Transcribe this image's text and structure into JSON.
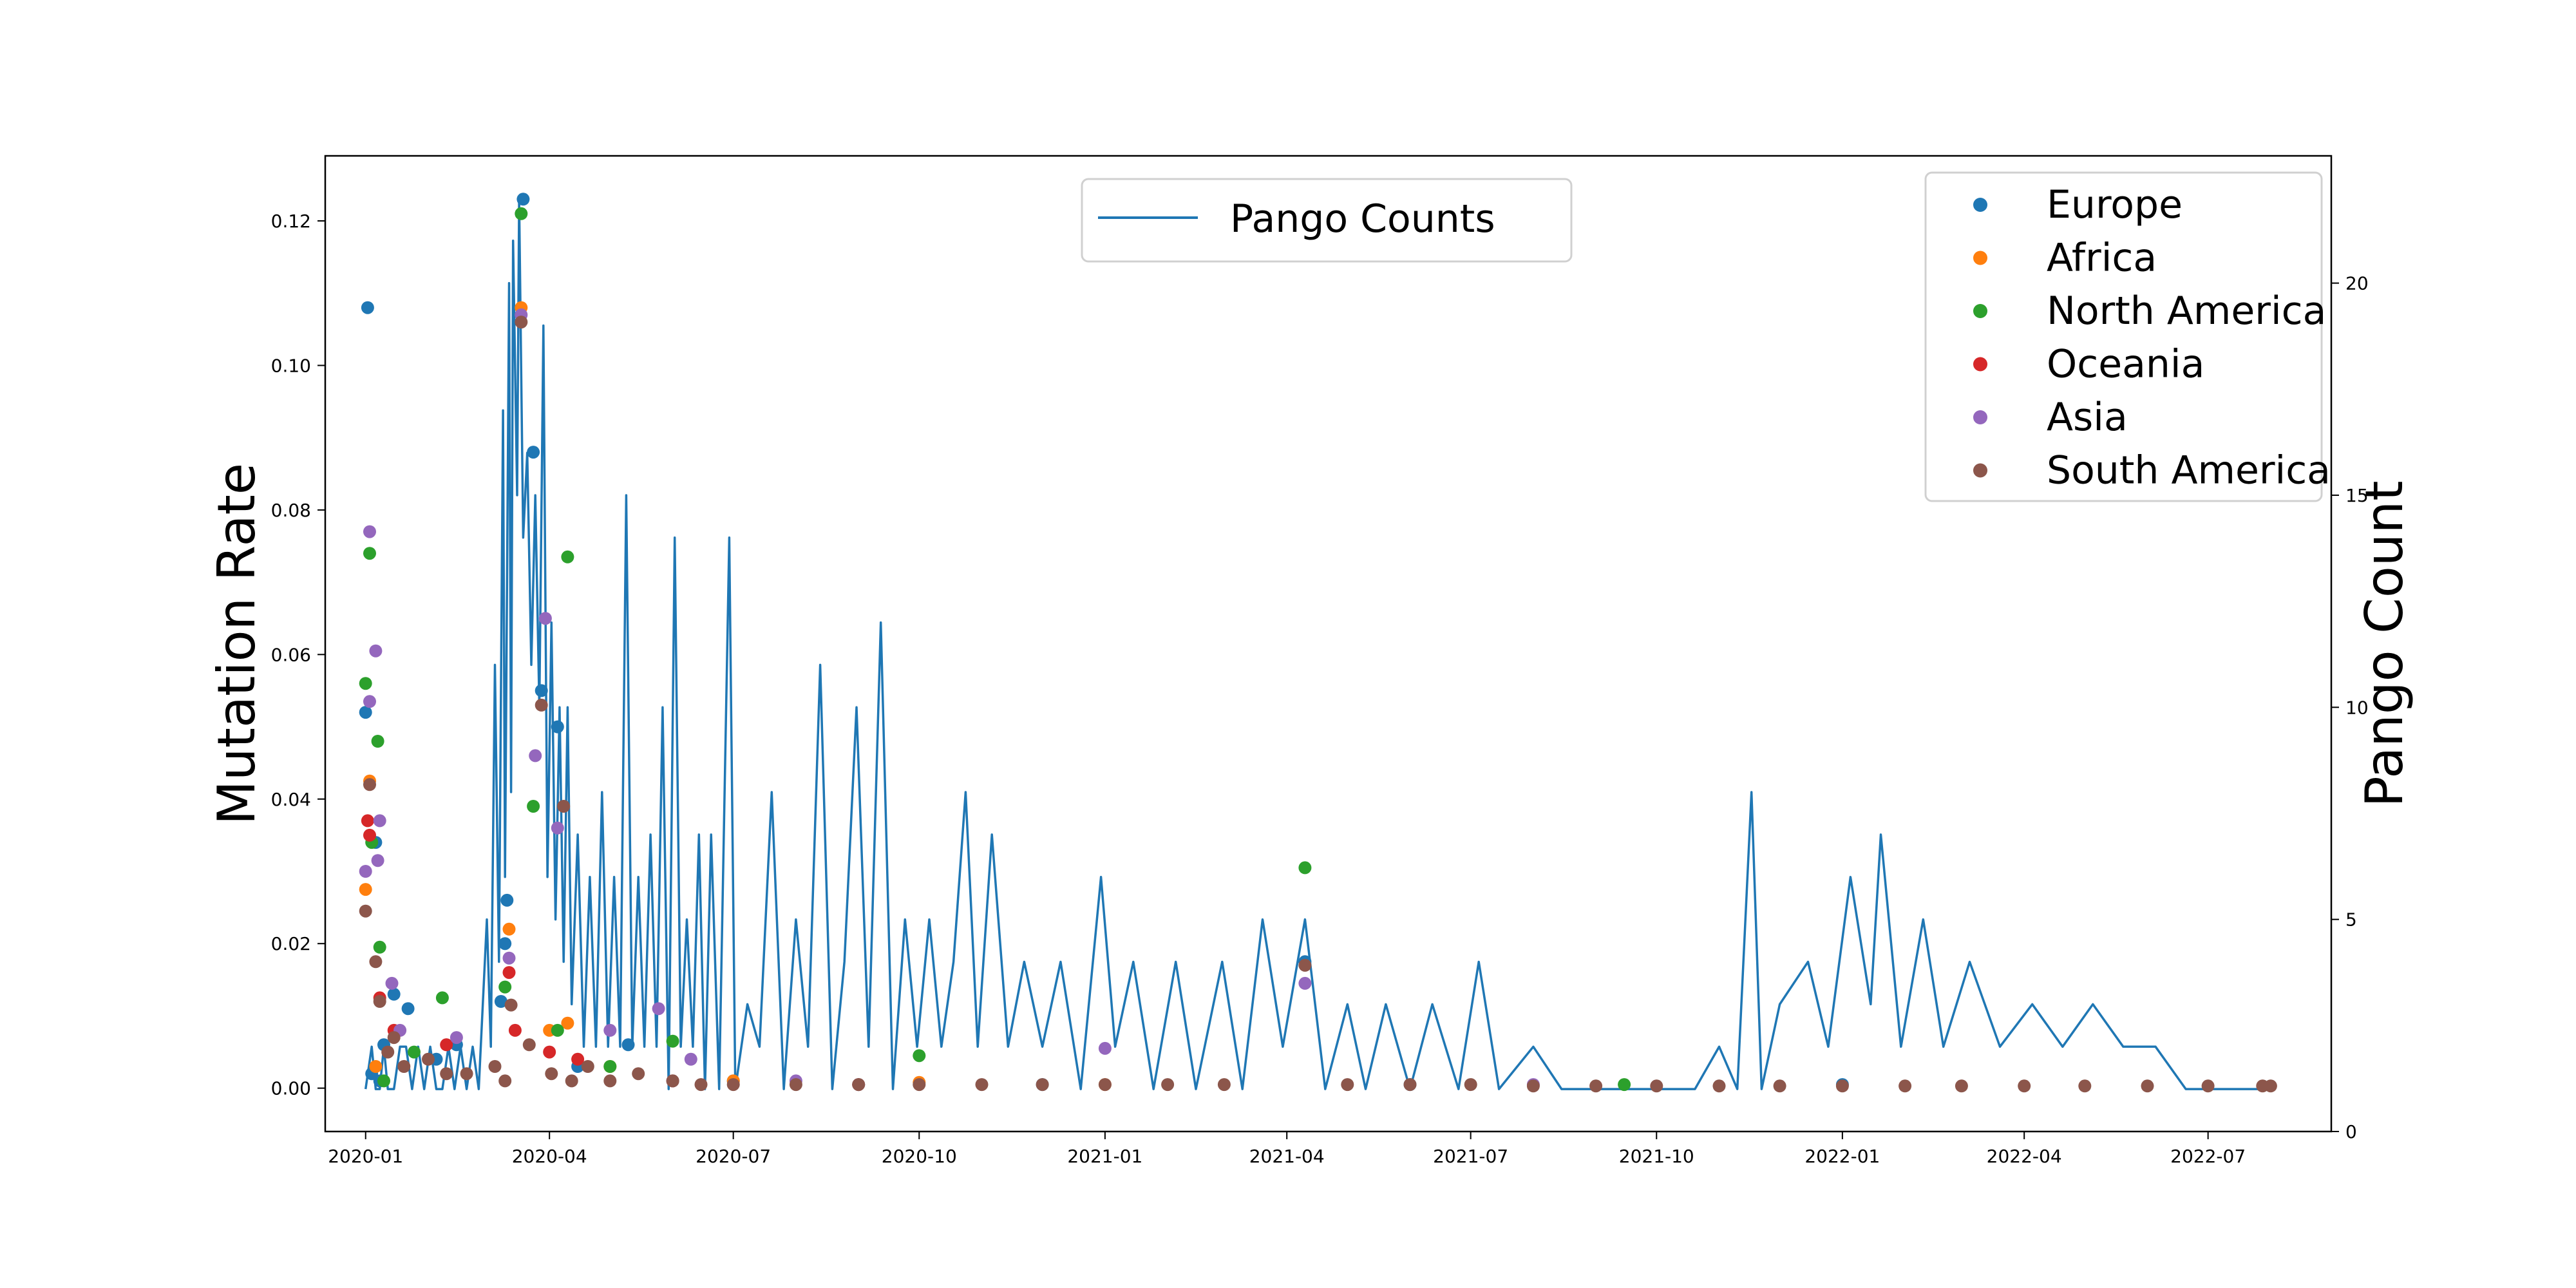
{
  "chart_data": {
    "type": "scatter",
    "title": "",
    "xlabel": "",
    "ylabel": "Mutation Rate",
    "y2label": "Pango Count",
    "x_ticks": [
      "2020-01",
      "2020-04",
      "2020-07",
      "2020-10",
      "2021-01",
      "2021-04",
      "2021-07",
      "2021-10",
      "2022-01",
      "2022-04",
      "2022-07"
    ],
    "xlim": [
      "2019-12-12",
      "2022-08-31"
    ],
    "ylim": [
      -0.006,
      0.129
    ],
    "y_ticks": [
      "0.00",
      "0.02",
      "0.04",
      "0.06",
      "0.08",
      "0.10",
      "0.12"
    ],
    "y2lim": [
      0,
      23
    ],
    "y2_ticks": [
      "0",
      "5",
      "10",
      "15",
      "20"
    ],
    "grid": false,
    "legend_line": {
      "placement": "top-center",
      "entries": [
        "Pango Counts"
      ]
    },
    "legend_scatter": {
      "placement": "top-right"
    },
    "line_series": {
      "name": "Pango Counts",
      "color": "#1f77b4",
      "points": [
        [
          "2020-01-01",
          1
        ],
        [
          "2020-01-04",
          2
        ],
        [
          "2020-01-06",
          1
        ],
        [
          "2020-01-08",
          1
        ],
        [
          "2020-01-10",
          2
        ],
        [
          "2020-01-12",
          1
        ],
        [
          "2020-01-15",
          1
        ],
        [
          "2020-01-18",
          2
        ],
        [
          "2020-01-21",
          2
        ],
        [
          "2020-01-24",
          1
        ],
        [
          "2020-01-27",
          2
        ],
        [
          "2020-01-30",
          1
        ],
        [
          "2020-02-02",
          2
        ],
        [
          "2020-02-05",
          1
        ],
        [
          "2020-02-08",
          1
        ],
        [
          "2020-02-11",
          2
        ],
        [
          "2020-02-14",
          1
        ],
        [
          "2020-02-17",
          2
        ],
        [
          "2020-02-20",
          1
        ],
        [
          "2020-02-23",
          2
        ],
        [
          "2020-02-26",
          1
        ],
        [
          "2020-03-01",
          5
        ],
        [
          "2020-03-03",
          2
        ],
        [
          "2020-03-05",
          11
        ],
        [
          "2020-03-07",
          4
        ],
        [
          "2020-03-09",
          17
        ],
        [
          "2020-03-10",
          6
        ],
        [
          "2020-03-12",
          20
        ],
        [
          "2020-03-13",
          8
        ],
        [
          "2020-03-14",
          21
        ],
        [
          "2020-03-16",
          15
        ],
        [
          "2020-03-17",
          22
        ],
        [
          "2020-03-19",
          14
        ],
        [
          "2020-03-21",
          16
        ],
        [
          "2020-03-23",
          11
        ],
        [
          "2020-03-25",
          15
        ],
        [
          "2020-03-27",
          10
        ],
        [
          "2020-03-29",
          19
        ],
        [
          "2020-03-31",
          6
        ],
        [
          "2020-04-02",
          12
        ],
        [
          "2020-04-04",
          5
        ],
        [
          "2020-04-06",
          10
        ],
        [
          "2020-04-08",
          4
        ],
        [
          "2020-04-10",
          10
        ],
        [
          "2020-04-12",
          3
        ],
        [
          "2020-04-15",
          7
        ],
        [
          "2020-04-18",
          2
        ],
        [
          "2020-04-21",
          6
        ],
        [
          "2020-04-24",
          2
        ],
        [
          "2020-04-27",
          8
        ],
        [
          "2020-04-30",
          2
        ],
        [
          "2020-05-03",
          6
        ],
        [
          "2020-05-06",
          2
        ],
        [
          "2020-05-09",
          15
        ],
        [
          "2020-05-12",
          2
        ],
        [
          "2020-05-15",
          6
        ],
        [
          "2020-05-18",
          2
        ],
        [
          "2020-05-21",
          7
        ],
        [
          "2020-05-24",
          2
        ],
        [
          "2020-05-27",
          10
        ],
        [
          "2020-05-30",
          1
        ],
        [
          "2020-06-02",
          14
        ],
        [
          "2020-06-05",
          2
        ],
        [
          "2020-06-08",
          5
        ],
        [
          "2020-06-11",
          2
        ],
        [
          "2020-06-14",
          7
        ],
        [
          "2020-06-17",
          1
        ],
        [
          "2020-06-20",
          7
        ],
        [
          "2020-06-24",
          1
        ],
        [
          "2020-06-29",
          14
        ],
        [
          "2020-07-02",
          1
        ],
        [
          "2020-07-08",
          3
        ],
        [
          "2020-07-14",
          2
        ],
        [
          "2020-07-20",
          8
        ],
        [
          "2020-07-26",
          1
        ],
        [
          "2020-08-01",
          5
        ],
        [
          "2020-08-07",
          2
        ],
        [
          "2020-08-13",
          11
        ],
        [
          "2020-08-19",
          1
        ],
        [
          "2020-08-25",
          4
        ],
        [
          "2020-08-31",
          10
        ],
        [
          "2020-09-06",
          2
        ],
        [
          "2020-09-12",
          12
        ],
        [
          "2020-09-18",
          1
        ],
        [
          "2020-09-24",
          5
        ],
        [
          "2020-09-30",
          2
        ],
        [
          "2020-10-06",
          5
        ],
        [
          "2020-10-12",
          2
        ],
        [
          "2020-10-18",
          4
        ],
        [
          "2020-10-24",
          8
        ],
        [
          "2020-10-30",
          2
        ],
        [
          "2020-11-06",
          7
        ],
        [
          "2020-11-14",
          2
        ],
        [
          "2020-11-22",
          4
        ],
        [
          "2020-12-01",
          2
        ],
        [
          "2020-12-10",
          4
        ],
        [
          "2020-12-20",
          1
        ],
        [
          "2020-12-30",
          6
        ],
        [
          "2021-01-06",
          2
        ],
        [
          "2021-01-15",
          4
        ],
        [
          "2021-01-25",
          1
        ],
        [
          "2021-02-05",
          4
        ],
        [
          "2021-02-15",
          1
        ],
        [
          "2021-02-28",
          4
        ],
        [
          "2021-03-10",
          1
        ],
        [
          "2021-03-20",
          5
        ],
        [
          "2021-03-30",
          2
        ],
        [
          "2021-04-10",
          5
        ],
        [
          "2021-04-20",
          1
        ],
        [
          "2021-05-01",
          3
        ],
        [
          "2021-05-10",
          1
        ],
        [
          "2021-05-20",
          3
        ],
        [
          "2021-06-01",
          1
        ],
        [
          "2021-06-12",
          3
        ],
        [
          "2021-06-25",
          1
        ],
        [
          "2021-07-05",
          4
        ],
        [
          "2021-07-15",
          1
        ],
        [
          "2021-08-01",
          2
        ],
        [
          "2021-08-15",
          1
        ],
        [
          "2021-09-01",
          1
        ],
        [
          "2021-10-01",
          1
        ],
        [
          "2021-10-20",
          1
        ],
        [
          "2021-11-01",
          2
        ],
        [
          "2021-11-10",
          1
        ],
        [
          "2021-11-17",
          8
        ],
        [
          "2021-11-22",
          1
        ],
        [
          "2021-12-01",
          3
        ],
        [
          "2021-12-15",
          4
        ],
        [
          "2021-12-25",
          2
        ],
        [
          "2022-01-05",
          6
        ],
        [
          "2022-01-15",
          3
        ],
        [
          "2022-01-20",
          7
        ],
        [
          "2022-01-30",
          2
        ],
        [
          "2022-02-10",
          5
        ],
        [
          "2022-02-20",
          2
        ],
        [
          "2022-03-05",
          4
        ],
        [
          "2022-03-20",
          2
        ],
        [
          "2022-04-05",
          3
        ],
        [
          "2022-04-20",
          2
        ],
        [
          "2022-05-05",
          3
        ],
        [
          "2022-05-20",
          2
        ],
        [
          "2022-06-05",
          2
        ],
        [
          "2022-06-20",
          1
        ],
        [
          "2022-07-01",
          1
        ],
        [
          "2022-07-25",
          1
        ],
        [
          "2022-08-01",
          1
        ]
      ]
    },
    "series": [
      {
        "name": "Europe",
        "color": "#1f77b4",
        "points": [
          [
            "2020-01-01",
            0.052
          ],
          [
            "2020-01-02",
            0.108
          ],
          [
            "2020-01-04",
            0.002
          ],
          [
            "2020-01-06",
            0.034
          ],
          [
            "2020-01-08",
            0.001
          ],
          [
            "2020-01-10",
            0.006
          ],
          [
            "2020-01-15",
            0.013
          ],
          [
            "2020-01-22",
            0.011
          ],
          [
            "2020-02-05",
            0.004
          ],
          [
            "2020-02-15",
            0.006
          ],
          [
            "2020-03-08",
            0.012
          ],
          [
            "2020-03-10",
            0.02
          ],
          [
            "2020-03-11",
            0.026
          ],
          [
            "2020-03-19",
            0.123
          ],
          [
            "2020-03-24",
            0.088
          ],
          [
            "2020-03-28",
            0.055
          ],
          [
            "2020-04-05",
            0.05
          ],
          [
            "2020-04-15",
            0.003
          ],
          [
            "2020-05-10",
            0.006
          ],
          [
            "2020-06-01",
            0.001
          ],
          [
            "2020-07-01",
            0.001
          ],
          [
            "2020-09-01",
            0.0005
          ],
          [
            "2020-12-01",
            0.0005
          ],
          [
            "2021-04-10",
            0.0175
          ],
          [
            "2021-06-01",
            0.0005
          ],
          [
            "2022-01-01",
            0.0005
          ]
        ]
      },
      {
        "name": "Africa",
        "color": "#ff7f0e",
        "points": [
          [
            "2020-01-01",
            0.0275
          ],
          [
            "2020-01-03",
            0.0425
          ],
          [
            "2020-01-06",
            0.003
          ],
          [
            "2020-03-12",
            0.022
          ],
          [
            "2020-03-18",
            0.108
          ],
          [
            "2020-04-01",
            0.008
          ],
          [
            "2020-04-10",
            0.009
          ],
          [
            "2020-05-01",
            0.003
          ],
          [
            "2020-07-01",
            0.001
          ],
          [
            "2020-10-01",
            0.0008
          ],
          [
            "2021-01-01",
            0.0005
          ]
        ]
      },
      {
        "name": "North America",
        "color": "#2ca02c",
        "points": [
          [
            "2020-01-01",
            0.056
          ],
          [
            "2020-01-03",
            0.074
          ],
          [
            "2020-01-04",
            0.034
          ],
          [
            "2020-01-07",
            0.048
          ],
          [
            "2020-01-08",
            0.0195
          ],
          [
            "2020-01-10",
            0.001
          ],
          [
            "2020-01-25",
            0.005
          ],
          [
            "2020-02-08",
            0.0125
          ],
          [
            "2020-03-10",
            0.014
          ],
          [
            "2020-03-18",
            0.121
          ],
          [
            "2020-03-24",
            0.039
          ],
          [
            "2020-04-05",
            0.008
          ],
          [
            "2020-04-10",
            0.0735
          ],
          [
            "2020-05-01",
            0.003
          ],
          [
            "2020-06-01",
            0.0065
          ],
          [
            "2020-10-01",
            0.0045
          ],
          [
            "2021-04-10",
            0.0305
          ],
          [
            "2021-09-15",
            0.0005
          ]
        ]
      },
      {
        "name": "Oceania",
        "color": "#d62728",
        "points": [
          [
            "2020-01-02",
            0.037
          ],
          [
            "2020-01-03",
            0.035
          ],
          [
            "2020-01-08",
            0.0125
          ],
          [
            "2020-01-15",
            0.008
          ],
          [
            "2020-02-10",
            0.006
          ],
          [
            "2020-03-12",
            0.016
          ],
          [
            "2020-03-15",
            0.008
          ],
          [
            "2020-04-01",
            0.005
          ],
          [
            "2020-04-15",
            0.004
          ],
          [
            "2020-06-01",
            0.001
          ],
          [
            "2020-09-01",
            0.0005
          ]
        ]
      },
      {
        "name": "Asia",
        "color": "#9467bd",
        "points": [
          [
            "2020-01-01",
            0.03
          ],
          [
            "2020-01-03",
            0.077
          ],
          [
            "2020-01-03",
            0.0535
          ],
          [
            "2020-01-06",
            0.0605
          ],
          [
            "2020-01-07",
            0.0315
          ],
          [
            "2020-01-08",
            0.037
          ],
          [
            "2020-01-14",
            0.0145
          ],
          [
            "2020-01-18",
            0.008
          ],
          [
            "2020-02-15",
            0.007
          ],
          [
            "2020-03-12",
            0.018
          ],
          [
            "2020-03-18",
            0.107
          ],
          [
            "2020-03-25",
            0.046
          ],
          [
            "2020-03-30",
            0.065
          ],
          [
            "2020-04-05",
            0.036
          ],
          [
            "2020-05-01",
            0.008
          ],
          [
            "2020-05-25",
            0.011
          ],
          [
            "2020-06-10",
            0.004
          ],
          [
            "2020-08-01",
            0.001
          ],
          [
            "2021-01-01",
            0.0055
          ],
          [
            "2021-04-10",
            0.0145
          ],
          [
            "2021-08-01",
            0.0005
          ]
        ]
      },
      {
        "name": "South America",
        "color": "#8c564b",
        "points": [
          [
            "2020-01-01",
            0.0245
          ],
          [
            "2020-01-03",
            0.042
          ],
          [
            "2020-01-06",
            0.0175
          ],
          [
            "2020-01-08",
            0.012
          ],
          [
            "2020-01-12",
            0.005
          ],
          [
            "2020-01-15",
            0.007
          ],
          [
            "2020-01-20",
            0.003
          ],
          [
            "2020-02-01",
            0.004
          ],
          [
            "2020-02-10",
            0.002
          ],
          [
            "2020-02-20",
            0.002
          ],
          [
            "2020-03-05",
            0.003
          ],
          [
            "2020-03-10",
            0.001
          ],
          [
            "2020-03-13",
            0.0115
          ],
          [
            "2020-03-18",
            0.106
          ],
          [
            "2020-03-22",
            0.006
          ],
          [
            "2020-03-28",
            0.053
          ],
          [
            "2020-04-02",
            0.002
          ],
          [
            "2020-04-08",
            0.039
          ],
          [
            "2020-04-12",
            0.001
          ],
          [
            "2020-04-20",
            0.003
          ],
          [
            "2020-05-01",
            0.001
          ],
          [
            "2020-05-15",
            0.002
          ],
          [
            "2020-06-01",
            0.001
          ],
          [
            "2020-06-15",
            0.0005
          ],
          [
            "2020-07-01",
            0.0005
          ],
          [
            "2020-08-01",
            0.0005
          ],
          [
            "2020-09-01",
            0.0005
          ],
          [
            "2020-10-01",
            0.0005
          ],
          [
            "2020-11-01",
            0.0005
          ],
          [
            "2020-12-01",
            0.0005
          ],
          [
            "2021-01-01",
            0.0005
          ],
          [
            "2021-02-01",
            0.0005
          ],
          [
            "2021-03-01",
            0.0005
          ],
          [
            "2021-04-10",
            0.017
          ],
          [
            "2021-05-01",
            0.0005
          ],
          [
            "2021-06-01",
            0.0005
          ],
          [
            "2021-07-01",
            0.0005
          ],
          [
            "2021-08-01",
            0.0003
          ],
          [
            "2021-09-01",
            0.0003
          ],
          [
            "2021-10-01",
            0.0003
          ],
          [
            "2021-11-01",
            0.0003
          ],
          [
            "2021-12-01",
            0.0003
          ],
          [
            "2022-01-01",
            0.0003
          ],
          [
            "2022-02-01",
            0.0003
          ],
          [
            "2022-03-01",
            0.0003
          ],
          [
            "2022-04-01",
            0.0003
          ],
          [
            "2022-05-01",
            0.0003
          ],
          [
            "2022-06-01",
            0.0003
          ],
          [
            "2022-07-01",
            0.0003
          ],
          [
            "2022-07-28",
            0.0003
          ],
          [
            "2022-08-01",
            0.0003
          ]
        ]
      }
    ]
  }
}
